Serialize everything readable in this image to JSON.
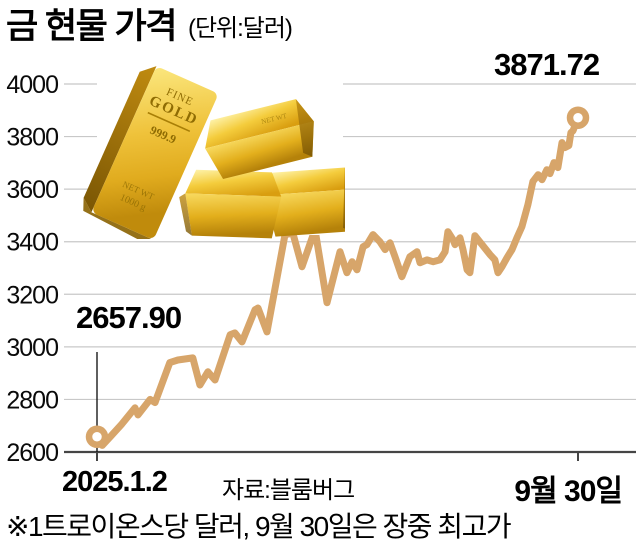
{
  "header": {
    "title": "금 현물 가격",
    "unit": "(단위:달러)"
  },
  "chart": {
    "annotations": {
      "start_value": "2657.90",
      "end_value": "3871.72"
    },
    "x_axis": {
      "start_label": "2025.1.2",
      "source_label": "자료:블룸버그",
      "end_label": "9월 30일"
    }
  },
  "footer": {
    "note": "※1트로이온스당 달러, 9월 30일은 장중 최고가"
  },
  "colors": {
    "line": "#D7A56A",
    "grid": "#C8C8C8",
    "axis": "#454545",
    "leader": "#1a1a1a",
    "text": "#000000",
    "gold_bright": "#FFF3A6",
    "gold_mid": "#EDBE2B",
    "gold_deep": "#C18F0B",
    "gold_dark": "#8A6400"
  },
  "illustration": {
    "name": "gold-bars",
    "face_line1": "FINE",
    "face_line2": "GOLD",
    "purity": "999.9",
    "weight_line1": "NET WT",
    "weight_line2": "1000 g"
  },
  "chart_data": {
    "type": "line",
    "title": "금 현물 가격",
    "unit": "달러",
    "ylabel": "",
    "xlabel": "",
    "ylim": [
      2600,
      4000
    ],
    "y_ticks": [
      2600,
      2800,
      3000,
      3200,
      3400,
      3600,
      3800,
      4000
    ],
    "grid": true,
    "x_range_days": 271,
    "start_point": {
      "label": "2025.1.2",
      "value": 2657.9
    },
    "end_point": {
      "label": "9월 30일",
      "value": 3871.72,
      "note": "장중 최고가"
    },
    "source": "자료:블룸버그",
    "points": [
      [
        0,
        2657.9
      ],
      [
        3,
        2625
      ],
      [
        8,
        2662
      ],
      [
        14,
        2706
      ],
      [
        21.4,
        2768
      ],
      [
        23.1,
        2741
      ],
      [
        29.9,
        2800
      ],
      [
        32.7,
        2788
      ],
      [
        41,
        2940
      ],
      [
        45.6,
        2950
      ],
      [
        54,
        2958
      ],
      [
        58,
        2855
      ],
      [
        62.5,
        2905
      ],
      [
        66.5,
        2874
      ],
      [
        75,
        3046
      ],
      [
        77.7,
        3053
      ],
      [
        81.7,
        3019
      ],
      [
        89,
        3141
      ],
      [
        90.7,
        3148
      ],
      [
        95.8,
        3057
      ],
      [
        105.9,
        3427
      ],
      [
        110.4,
        3432
      ],
      [
        115.5,
        3305
      ],
      [
        122.8,
        3446
      ],
      [
        129.6,
        3168
      ],
      [
        136.9,
        3362
      ],
      [
        140.8,
        3282
      ],
      [
        143.7,
        3324
      ],
      [
        146.5,
        3293
      ],
      [
        149.9,
        3381
      ],
      [
        152.1,
        3389
      ],
      [
        155.5,
        3427
      ],
      [
        159.4,
        3400
      ],
      [
        162.3,
        3370
      ],
      [
        165.1,
        3396
      ],
      [
        167.9,
        3343
      ],
      [
        171.8,
        3267
      ],
      [
        176.3,
        3343
      ],
      [
        180.3,
        3362
      ],
      [
        182.0,
        3320
      ],
      [
        185.9,
        3331
      ],
      [
        189.3,
        3324
      ],
      [
        193.2,
        3331
      ],
      [
        196.1,
        3362
      ],
      [
        197.7,
        3438
      ],
      [
        200.6,
        3408
      ],
      [
        201.7,
        3389
      ],
      [
        204.5,
        3415
      ],
      [
        206.2,
        3370
      ],
      [
        208.5,
        3293
      ],
      [
        210.1,
        3282
      ],
      [
        212.9,
        3423
      ],
      [
        216.9,
        3389
      ],
      [
        221.4,
        3351
      ],
      [
        224.2,
        3331
      ],
      [
        225.9,
        3282
      ],
      [
        228.2,
        3305
      ],
      [
        231,
        3339
      ],
      [
        233.8,
        3370
      ],
      [
        236.6,
        3415
      ],
      [
        239.4,
        3457
      ],
      [
        242.8,
        3541
      ],
      [
        245.6,
        3629
      ],
      [
        248.5,
        3655
      ],
      [
        250.7,
        3636
      ],
      [
        253.5,
        3674
      ],
      [
        255.2,
        3659
      ],
      [
        257.5,
        3701
      ],
      [
        259.7,
        3682
      ],
      [
        262,
        3777
      ],
      [
        263.7,
        3758
      ],
      [
        265.9,
        3766
      ],
      [
        267,
        3815
      ],
      [
        268.2,
        3822
      ],
      [
        271,
        3871.72
      ]
    ]
  }
}
